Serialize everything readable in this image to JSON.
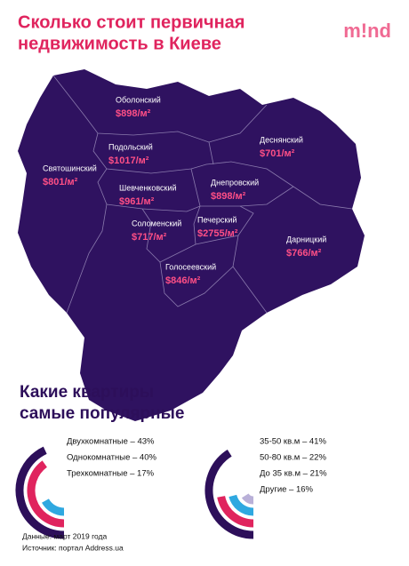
{
  "header": {
    "title_lines": [
      "Сколько стоит первичная",
      "недвижимость в Киеве"
    ],
    "logo": "m!nd"
  },
  "map": {
    "districts": [
      {
        "name": "Оболонский",
        "price": "$898/м²"
      },
      {
        "name": "Деснянский",
        "price": "$701/м²"
      },
      {
        "name": "Подольский",
        "price": "$1017/м²"
      },
      {
        "name": "Святошинский",
        "price": "$801/м²"
      },
      {
        "name": "Днепровский",
        "price": "$898/м²"
      },
      {
        "name": "Шевченковский",
        "price": "$961/м²"
      },
      {
        "name": "Печерский",
        "price": "$2755/м²"
      },
      {
        "name": "Соломенский",
        "price": "$717/м²"
      },
      {
        "name": "Дарницкий",
        "price": "$766/м²"
      },
      {
        "name": "Голосеевский",
        "price": "$846/м²"
      }
    ]
  },
  "chart_data": [
    {
      "type": "radial-bar",
      "title_lines": [
        "Какие квартиры",
        "самые популярные"
      ],
      "categories": [
        "Двухкомнатные – 43%",
        "Однокомнатные – 40%",
        "Трехкомнатные – 17%"
      ],
      "values": [
        43,
        40,
        17
      ],
      "colors": [
        "#2d0f5a",
        "#e0245e",
        "#2fa8e0"
      ]
    },
    {
      "type": "radial-bar",
      "categories": [
        "35-50 кв.м – 41%",
        "50-80 кв.м – 22%",
        "До 35 кв.м – 21%",
        "Другие – 16%"
      ],
      "values": [
        41,
        22,
        21,
        16
      ],
      "colors": [
        "#2d0f5a",
        "#e0245e",
        "#2fa8e0",
        "#b9b0d8"
      ]
    }
  ],
  "footer": {
    "date": "Данные: март 2019 года",
    "source": "Источник: портал Address.ua"
  }
}
